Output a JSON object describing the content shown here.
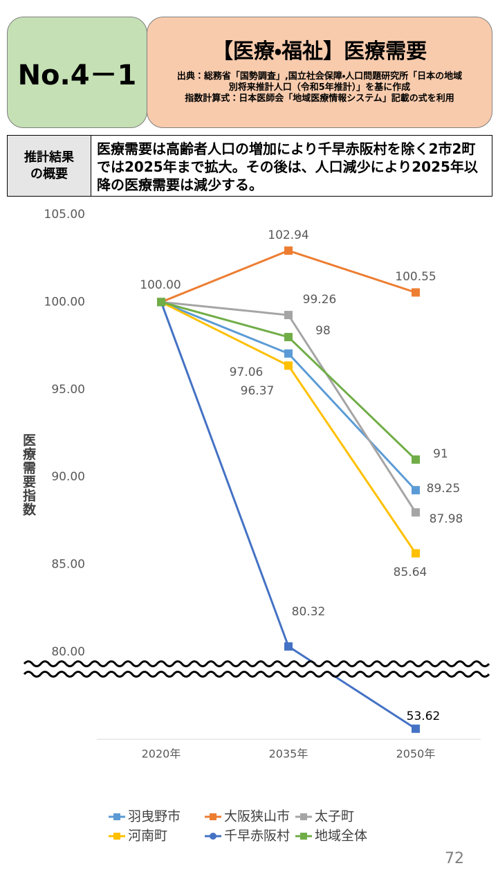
{
  "header": {
    "number": "No.4－1",
    "title": "【医療・福祉】医療需要",
    "source": [
      "出典：総務省「国勢調査」,国立社会保障・人口問題研究所「日本の地域",
      "別将来推計人口（令和5年推計）」を基に作成",
      "指数計算式：日本医師会「地域医療情報システム」記載の式を利用"
    ]
  },
  "summary": {
    "label": [
      "推計結果",
      "の概要"
    ],
    "text": "医療需要は高齢者人口の増加により千早赤阪村を除く2市2町では2025年まで拡大。その後は、人口減少により2025年以降の医療需要は減少する。"
  },
  "chart_data": {
    "type": "line",
    "y_label": "医療需要指数",
    "categories": [
      "2020年",
      "2035年",
      "2050年"
    ],
    "ylim": [
      50,
      105
    ],
    "axis_break": 80,
    "yticks": [
      {
        "value": 80,
        "label": "80.00"
      },
      {
        "value": 85,
        "label": "85.00"
      },
      {
        "value": 90,
        "label": "90.00"
      },
      {
        "value": 95,
        "label": "95.00"
      },
      {
        "value": 100,
        "label": "100.00"
      },
      {
        "value": 105,
        "label": "105.00"
      }
    ],
    "series": [
      {
        "name": "羽曳野市",
        "color": "#5b9bd5",
        "marker": "square",
        "values": [
          100,
          97.06,
          89.25
        ],
        "value_labels": [
          null,
          "97.06",
          "89.25"
        ]
      },
      {
        "name": "大阪狭山市",
        "color": "#ed7d31",
        "marker": "square",
        "values": [
          100,
          102.94,
          100.55
        ],
        "value_labels": [
          null,
          "102.94",
          "100.55"
        ]
      },
      {
        "name": "太子町",
        "color": "#a5a5a5",
        "marker": "square",
        "values": [
          100,
          99.26,
          87.98
        ],
        "value_labels": [
          null,
          "99.26",
          "87.98"
        ]
      },
      {
        "name": "河南町",
        "color": "#ffc000",
        "marker": "square",
        "values": [
          100,
          96.37,
          85.64
        ],
        "value_labels": [
          null,
          "96.37",
          "85.64"
        ]
      },
      {
        "name": "千早赤阪村",
        "color": "#4472c4",
        "marker": "circle",
        "values": [
          100,
          80.32,
          53.62
        ],
        "value_labels": [
          null,
          "80.32",
          "53.62"
        ]
      },
      {
        "name": "地域全体",
        "color": "#70ad47",
        "marker": "square",
        "values": [
          100,
          98,
          91
        ],
        "value_labels": [
          "100.00",
          "98",
          "91"
        ]
      }
    ]
  },
  "page_number": "72"
}
